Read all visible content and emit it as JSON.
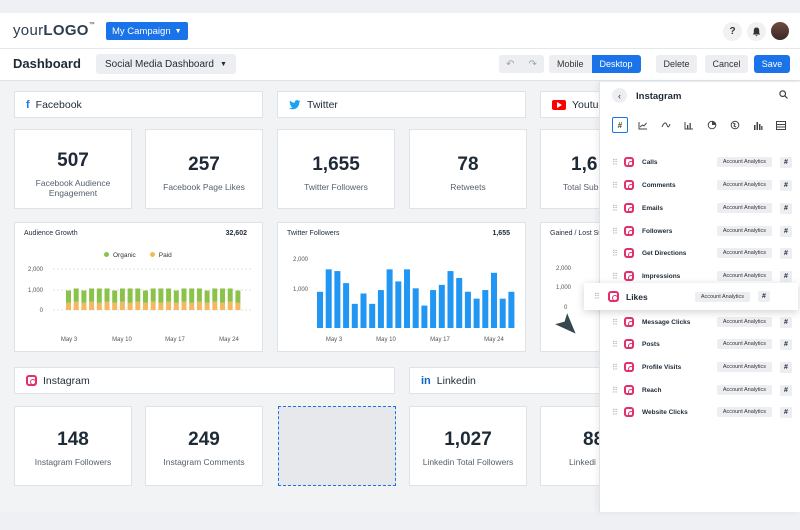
{
  "header": {
    "logo_prefix": "your",
    "logo_bold": "LOGO",
    "logo_tm": "™",
    "campaign_label": "My Campaign",
    "help_icon": "?",
    "bell_icon": "bell-icon"
  },
  "toolbar": {
    "title": "Dashboard",
    "dashboard_select": "Social Media Dashboard",
    "mobile": "Mobile",
    "desktop": "Desktop",
    "delete": "Delete",
    "cancel": "Cancel",
    "save": "Save"
  },
  "sections": {
    "facebook": "Facebook",
    "twitter": "Twitter",
    "youtube": "Youtub",
    "instagram": "Instagram",
    "linkedin": "Linkedin"
  },
  "stats_row1": [
    {
      "value": "507",
      "label": "Facebook Audience Engagement"
    },
    {
      "value": "257",
      "label": "Facebook Page Likes"
    },
    {
      "value": "1,655",
      "label": "Twitter Followers"
    },
    {
      "value": "78",
      "label": "Retweets"
    },
    {
      "value": "1,6",
      "label": "Total Sub"
    }
  ],
  "stats_row2": [
    {
      "value": "148",
      "label": "Instagram Followers"
    },
    {
      "value": "249",
      "label": "Instagram Comments"
    },
    {
      "value": "1,027",
      "label": "Linkedin Total Followers"
    },
    {
      "value": "88",
      "label": "Linkedi"
    }
  ],
  "charts": {
    "audience": {
      "title": "Audience Growth",
      "total": "32,602",
      "legend_organic": "Organic",
      "legend_paid": "Paid"
    },
    "twitter": {
      "title": "Twitter Followers",
      "total": "1,655"
    },
    "gained": {
      "title": "Gained / Lost Su"
    }
  },
  "panel": {
    "title": "Instagram",
    "metrics": [
      {
        "name": "Calls",
        "tag": "Account Analytics"
      },
      {
        "name": "Comments",
        "tag": "Account Analytics"
      },
      {
        "name": "Emails",
        "tag": "Account Analytics"
      },
      {
        "name": "Followers",
        "tag": "Account Analytics"
      },
      {
        "name": "Get Directions",
        "tag": "Account Analytics"
      },
      {
        "name": "Impressions",
        "tag": "Account Analytics"
      },
      {
        "name": "Message Clicks",
        "tag": "Account Analytics"
      },
      {
        "name": "Posts",
        "tag": "Account Analytics"
      },
      {
        "name": "Profile Visits",
        "tag": "Account Analytics"
      },
      {
        "name": "Reach",
        "tag": "Account Analytics"
      },
      {
        "name": "Website Clicks",
        "tag": "Account Analytics"
      }
    ],
    "dragging": {
      "name": "Likes",
      "tag": "Account Analytics"
    }
  },
  "colors": {
    "primary": "#1a73e8",
    "organic": "#8bc34a",
    "paid": "#f4b860",
    "bar_blue": "#2196f3"
  },
  "chart_data": [
    {
      "type": "bar",
      "title": "Audience Growth",
      "categories": [
        "May 3",
        "",
        "",
        "",
        "",
        "",
        "",
        "May 10",
        "",
        "",
        "",
        "",
        "",
        "",
        "May 17",
        "",
        "",
        "",
        "",
        "",
        "",
        "May 24",
        ""
      ],
      "yticks": [
        "0",
        "1,000",
        "2,000"
      ],
      "ylim": [
        0,
        2000
      ],
      "series": [
        {
          "name": "Organic",
          "values": [
            600,
            650,
            600,
            650,
            700,
            650,
            600,
            650,
            700,
            650,
            600,
            650,
            700,
            650,
            600,
            650,
            700,
            650,
            600,
            650,
            700,
            650,
            600
          ]
        },
        {
          "name": "Paid",
          "values": [
            350,
            400,
            350,
            400,
            350,
            400,
            350,
            400,
            350,
            400,
            350,
            400,
            350,
            400,
            350,
            400,
            350,
            400,
            350,
            400,
            350,
            400,
            350
          ]
        }
      ],
      "xticks": [
        "May 3",
        "May 10",
        "May 17",
        "May 24"
      ]
    },
    {
      "type": "bar",
      "title": "Twitter Followers",
      "yticks": [
        "1,000",
        "2,000"
      ],
      "ylim": [
        0,
        2000
      ],
      "series": [
        {
          "values": [
            1050,
            1700,
            1650,
            1300,
            700,
            1000,
            700,
            1100,
            1700,
            1350,
            1700,
            1150,
            650,
            1100,
            1250,
            1650,
            1450,
            1050,
            850,
            1100,
            1600,
            850,
            1050
          ]
        }
      ],
      "xticks": [
        "May 3",
        "May 10",
        "May 17",
        "May 24"
      ]
    }
  ]
}
